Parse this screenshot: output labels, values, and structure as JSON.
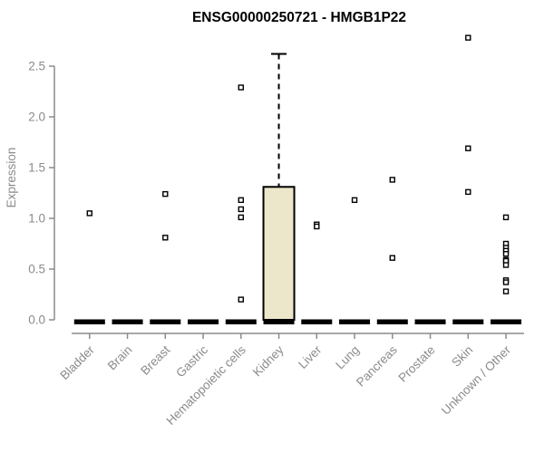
{
  "chart_data": {
    "type": "boxplot",
    "title": "ENSG00000250721 - HMGB1P22",
    "xlabel": "",
    "ylabel": "Expression",
    "yticks": [
      "0.0",
      "0.5",
      "1.0",
      "1.5",
      "2.0",
      "2.5"
    ],
    "ylim": [
      0,
      2.8
    ],
    "grid": false,
    "legend": false,
    "categories": [
      "Bladder",
      "Brain",
      "Breast",
      "Gastric",
      "Hematopoietic cells",
      "Kidney",
      "Liver",
      "Lung",
      "Pancreas",
      "Prostate",
      "Skin",
      "Unknown / Other"
    ],
    "series": [
      {
        "category": "Bladder",
        "zero_bar": true,
        "points": [
          1.05
        ]
      },
      {
        "category": "Brain",
        "zero_bar": true,
        "points": []
      },
      {
        "category": "Breast",
        "zero_bar": true,
        "points": [
          1.24,
          0.81
        ]
      },
      {
        "category": "Gastric",
        "zero_bar": true,
        "points": []
      },
      {
        "category": "Hematopoietic cells",
        "zero_bar": true,
        "points": [
          2.29,
          1.18,
          1.09,
          1.01,
          0.2
        ]
      },
      {
        "category": "Kidney",
        "zero_bar": true,
        "points": [],
        "box": {
          "q1": 0.0,
          "median": 0.02,
          "q3": 1.31,
          "whisker_high": 2.62,
          "fill": "#ECE6CA"
        }
      },
      {
        "category": "Liver",
        "zero_bar": true,
        "points": [
          0.94,
          0.92
        ]
      },
      {
        "category": "Lung",
        "zero_bar": true,
        "points": [
          1.18
        ]
      },
      {
        "category": "Pancreas",
        "zero_bar": true,
        "points": [
          1.38,
          0.61
        ]
      },
      {
        "category": "Prostate",
        "zero_bar": true,
        "points": []
      },
      {
        "category": "Skin",
        "zero_bar": true,
        "points": [
          2.78,
          1.69,
          1.26
        ]
      },
      {
        "category": "Unknown / Other",
        "zero_bar": true,
        "points": [
          1.01,
          0.75,
          0.71,
          0.68,
          0.65,
          0.59,
          0.58,
          0.54,
          0.39,
          0.37,
          0.28
        ]
      }
    ],
    "colors": {
      "axis": "#8b8b8b",
      "tick_text": "#8b8b8b",
      "title_text": "#000000",
      "box_fill": "#ECE6CA",
      "box_stroke": "#000000",
      "marker_stroke": "#000000",
      "marker_fill": "#ffffff",
      "zero_bar": "#000000",
      "background": "#ffffff"
    }
  }
}
